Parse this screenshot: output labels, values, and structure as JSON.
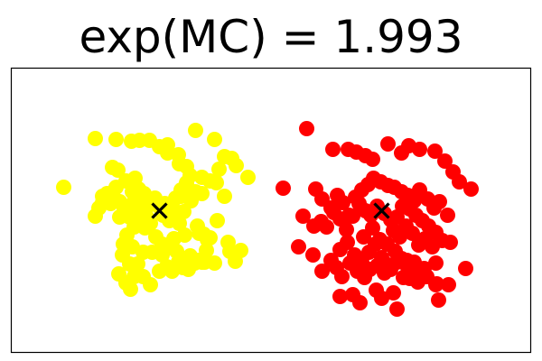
{
  "chart_data": {
    "type": "scatter",
    "title": "exp(MC) = 1.993",
    "xlabel": "",
    "ylabel": "",
    "xlim": [
      0,
      575
    ],
    "ylim": [
      0,
      315
    ],
    "grid": false,
    "ticks_visible": false,
    "series": [
      {
        "color": "#FFFF00",
        "marker": "circle",
        "points": [
          [
            93,
            237
          ],
          [
            116,
            236
          ],
          [
            133,
            234
          ],
          [
            142,
            235
          ],
          [
            153,
            235
          ],
          [
            204,
            246
          ],
          [
            225,
            236
          ],
          [
            58,
            183
          ],
          [
            164,
            228
          ],
          [
            173,
            230
          ],
          [
            173,
            221
          ],
          [
            185,
            219
          ],
          [
            186,
            209
          ],
          [
            194,
            206
          ],
          [
            198,
            196
          ],
          [
            211,
            194
          ],
          [
            230,
            203
          ],
          [
            236,
            217
          ],
          [
            244,
            215
          ],
          [
            249,
            207
          ],
          [
            262,
            194
          ],
          [
            236,
            173
          ],
          [
            227,
            188
          ],
          [
            220,
            190
          ],
          [
            211,
            176
          ],
          [
            204,
            178
          ],
          [
            195,
            183
          ],
          [
            188,
            173
          ],
          [
            182,
            171
          ],
          [
            175,
            157
          ],
          [
            170,
            165
          ],
          [
            164,
            161
          ],
          [
            159,
            171
          ],
          [
            153,
            165
          ],
          [
            147,
            176
          ],
          [
            141,
            181
          ],
          [
            134,
            178
          ],
          [
            127,
            190
          ],
          [
            118,
            202
          ],
          [
            112,
            205
          ],
          [
            116,
            183
          ],
          [
            106,
            176
          ],
          [
            101,
            173
          ],
          [
            93,
            151
          ],
          [
            97,
            160
          ],
          [
            101,
            166
          ],
          [
            110,
            165
          ],
          [
            113,
            172
          ],
          [
            120,
            167
          ],
          [
            125,
            158
          ],
          [
            130,
            161
          ],
          [
            136,
            167
          ],
          [
            143,
            175
          ],
          [
            150,
            161
          ],
          [
            160,
            166
          ],
          [
            168,
            152
          ],
          [
            175,
            146
          ],
          [
            183,
            146
          ],
          [
            191,
            156
          ],
          [
            199,
            168
          ],
          [
            206,
            140
          ],
          [
            213,
            131
          ],
          [
            217,
            125
          ],
          [
            208,
            132
          ],
          [
            192,
            130
          ],
          [
            186,
            143
          ],
          [
            180,
            126
          ],
          [
            174,
            118
          ],
          [
            167,
            120
          ],
          [
            160,
            128
          ],
          [
            154,
            143
          ],
          [
            148,
            138
          ],
          [
            141,
            142
          ],
          [
            136,
            139
          ],
          [
            128,
            130
          ],
          [
            124,
            120
          ],
          [
            134,
            117
          ],
          [
            146,
            111
          ],
          [
            156,
            111
          ],
          [
            167,
            108
          ],
          [
            183,
            112
          ],
          [
            198,
            107
          ],
          [
            207,
            102
          ],
          [
            214,
            100
          ],
          [
            220,
            127
          ],
          [
            240,
            122
          ],
          [
            242,
            112
          ],
          [
            254,
            113
          ],
          [
            248,
            101
          ],
          [
            140,
            98
          ],
          [
            131,
            98
          ],
          [
            123,
            108
          ],
          [
            119,
            87
          ],
          [
            127,
            77
          ],
          [
            132,
            70
          ],
          [
            136,
            84
          ],
          [
            146,
            84
          ],
          [
            154,
            75
          ],
          [
            164,
            90
          ],
          [
            172,
            95
          ],
          [
            178,
            90
          ],
          [
            185,
            100
          ],
          [
            190,
            94
          ],
          [
            196,
            92
          ],
          [
            203,
            99
          ],
          [
            211,
            100
          ],
          [
            216,
            113
          ],
          [
            225,
            99
          ],
          [
            150,
            150
          ],
          [
            145,
            155
          ],
          [
            178,
            162
          ],
          [
            188,
            180
          ],
          [
            194,
            188
          ],
          [
            131,
            150
          ],
          [
            120,
            150
          ],
          [
            137,
            193
          ],
          [
            228,
            146
          ]
        ]
      },
      {
        "color": "#FF0000",
        "marker": "circle",
        "points": [
          [
            327,
            248
          ],
          [
            356,
            225
          ],
          [
            373,
            225
          ],
          [
            382,
            222
          ],
          [
            392,
            218
          ],
          [
            400,
            214
          ],
          [
            417,
            231
          ],
          [
            432,
            221
          ],
          [
            440,
            229
          ],
          [
            452,
            225
          ],
          [
            469,
            223
          ],
          [
            480,
            212
          ],
          [
            489,
            200
          ],
          [
            496,
            189
          ],
          [
            509,
            181
          ],
          [
            301,
            182
          ],
          [
            337,
            181
          ],
          [
            344,
            170
          ],
          [
            354,
            160
          ],
          [
            361,
            174
          ],
          [
            367,
            166
          ],
          [
            374,
            152
          ],
          [
            381,
            172
          ],
          [
            388,
            180
          ],
          [
            395,
            186
          ],
          [
            401,
            193
          ],
          [
            409,
            189
          ],
          [
            417,
            185
          ],
          [
            424,
            183
          ],
          [
            432,
            178
          ],
          [
            439,
            174
          ],
          [
            446,
            168
          ],
          [
            452,
            180
          ],
          [
            461,
            170
          ],
          [
            468,
            160
          ],
          [
            474,
            167
          ],
          [
            483,
            152
          ],
          [
            323,
            151
          ],
          [
            335,
            140
          ],
          [
            343,
            145
          ],
          [
            349,
            139
          ],
          [
            357,
            155
          ],
          [
            364,
            148
          ],
          [
            371,
            136
          ],
          [
            378,
            151
          ],
          [
            385,
            165
          ],
          [
            392,
            157
          ],
          [
            398,
            152
          ],
          [
            405,
            162
          ],
          [
            413,
            154
          ],
          [
            420,
            147
          ],
          [
            427,
            150
          ],
          [
            433,
            162
          ],
          [
            441,
            159
          ],
          [
            448,
            152
          ],
          [
            455,
            146
          ],
          [
            462,
            140
          ],
          [
            470,
            133
          ],
          [
            477,
            124
          ],
          [
            486,
            122
          ],
          [
            390,
            128
          ],
          [
            400,
            138
          ],
          [
            408,
            125
          ],
          [
            416,
            120
          ],
          [
            423,
            135
          ],
          [
            430,
            128
          ],
          [
            437,
            140
          ],
          [
            444,
            132
          ],
          [
            451,
            119
          ],
          [
            458,
            126
          ],
          [
            466,
            117
          ],
          [
            364,
            114
          ],
          [
            372,
            122
          ],
          [
            380,
            108
          ],
          [
            388,
            100
          ],
          [
            396,
            111
          ],
          [
            403,
            120
          ],
          [
            410,
            105
          ],
          [
            417,
            97
          ],
          [
            425,
            112
          ],
          [
            432,
            104
          ],
          [
            439,
            94
          ],
          [
            446,
            100
          ],
          [
            453,
            88
          ],
          [
            460,
            84
          ],
          [
            470,
            99
          ],
          [
            503,
            93
          ],
          [
            318,
            117
          ],
          [
            334,
            108
          ],
          [
            344,
            90
          ],
          [
            354,
            102
          ],
          [
            360,
            94
          ],
          [
            366,
            84
          ],
          [
            375,
            99
          ],
          [
            383,
            90
          ],
          [
            391,
            83
          ],
          [
            397,
            92
          ],
          [
            405,
            96
          ],
          [
            413,
            88
          ],
          [
            420,
            92
          ],
          [
            427,
            100
          ],
          [
            434,
            83
          ],
          [
            441,
            82
          ],
          [
            450,
            78
          ],
          [
            457,
            93
          ],
          [
            470,
            75
          ],
          [
            484,
            75
          ],
          [
            404,
            69
          ],
          [
            364,
            62
          ],
          [
            378,
            64
          ],
          [
            386,
            55
          ],
          [
            410,
            60
          ],
          [
            423,
            66
          ],
          [
            427,
            48
          ],
          [
            471,
            76
          ],
          [
            438,
            102
          ],
          [
            473,
            58
          ]
        ]
      }
    ],
    "centroids": [
      {
        "x": 164,
        "y": 157,
        "color": "#000000",
        "marker": "x"
      },
      {
        "x": 410,
        "y": 157,
        "color": "#000000",
        "marker": "x"
      }
    ]
  }
}
